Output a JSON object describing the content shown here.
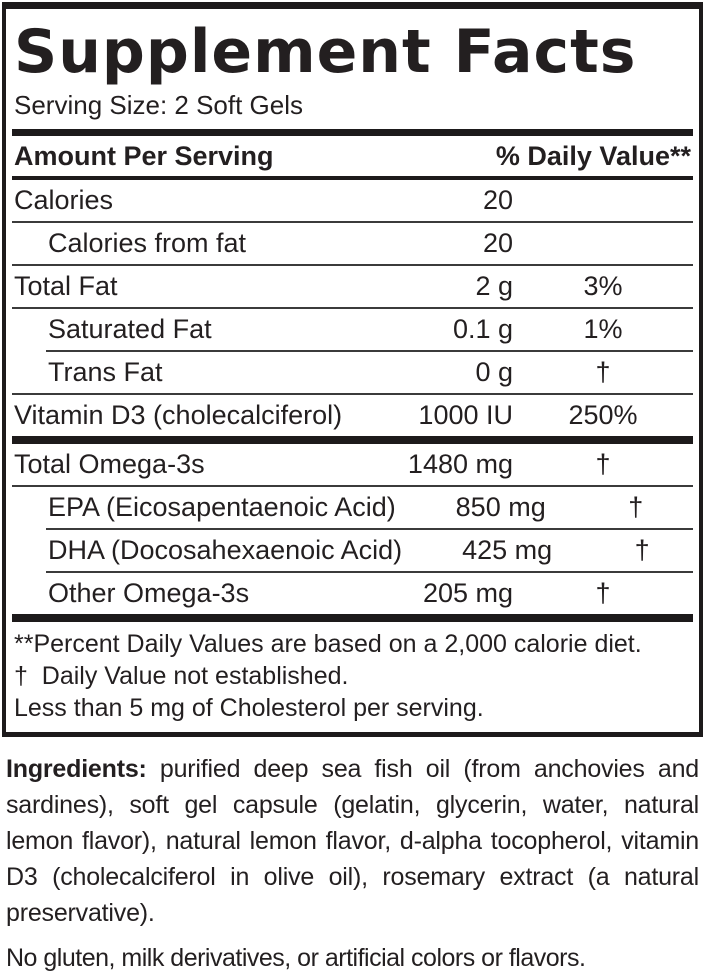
{
  "colors": {
    "ink": "#1d1a1b",
    "hairline": "#3b3b3b",
    "background": "#ffffff"
  },
  "panel": {
    "title": "Supplement Facts",
    "serving_size": "Serving Size: 2 Soft Gels",
    "header": {
      "amount_per_serving": "Amount Per Serving",
      "daily_value": "% Daily Value**"
    },
    "rows": [
      {
        "name": "Calories",
        "amount": "20",
        "dv": ""
      },
      {
        "name": "Calories from fat",
        "amount": "20",
        "dv": ""
      },
      {
        "name": "Total Fat",
        "amount": "2 g",
        "dv": "3%"
      },
      {
        "name": "Saturated Fat",
        "amount": "0.1 g",
        "dv": "1%"
      },
      {
        "name": "Trans Fat",
        "amount": "0 g",
        "dv": "†"
      },
      {
        "name": "Vitamin D3 (cholecalciferol)",
        "amount": "1000 IU",
        "dv": "250%"
      },
      {
        "name": "Total Omega-3s",
        "amount": "1480 mg",
        "dv": "†"
      },
      {
        "name": "EPA (Eicosapentaenoic Acid)",
        "amount": "850 mg",
        "dv": "†"
      },
      {
        "name": "DHA (Docosahexaenoic Acid)",
        "amount": "425 mg",
        "dv": "†"
      },
      {
        "name": "Other Omega-3s",
        "amount": "205 mg",
        "dv": "†"
      }
    ],
    "footnotes": {
      "percent": "**Percent Daily Values are based on a 2,000 calorie diet.",
      "dagger": "†  Daily Value not established.",
      "cholesterol": "Less than 5 mg of Cholesterol per serving."
    }
  },
  "ingredients": {
    "label": "Ingredients:",
    "text": "purified deep sea fish oil (from anchovies and sardines), soft gel capsule (gelatin, glycerin, water, natural lemon flavor), natural lemon flavor, d-alpha tocopherol, vitamin D3 (cholecalciferol in olive oil), rosemary extract (a natural preservative)."
  },
  "allergen_note": "No gluten, milk derivatives, or artificial colors or flavors."
}
